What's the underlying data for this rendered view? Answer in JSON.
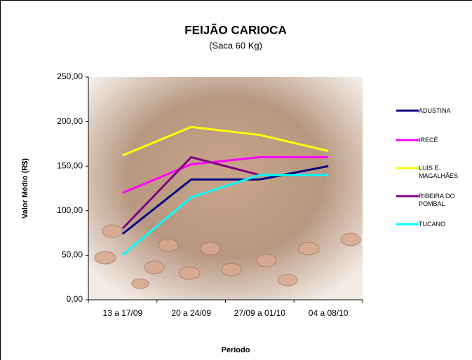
{
  "chart_data": {
    "type": "line",
    "title": "FEIJÃO CARIOCA",
    "subtitle": "(Saca 60 Kg)",
    "y_label": "Valor Médio (R$)",
    "x_label": "Período",
    "categories": [
      "13 a 17/09",
      "20 a 24/09",
      "27/09 a 01/10",
      "04 a 08/10"
    ],
    "series": [
      {
        "name": "ADUSTINA",
        "color": "#000080",
        "values": [
          74,
          135,
          135,
          150
        ]
      },
      {
        "name": "IRECÊ",
        "color": "#ff00ff",
        "values": [
          120,
          152,
          160,
          160
        ]
      },
      {
        "name": "LUÍS E. MAGALHÃES",
        "color": "#ffff00",
        "values": [
          162,
          194,
          185,
          167
        ]
      },
      {
        "name": "RIBEIRA DO POMBAL",
        "color": "#800080",
        "values": [
          80,
          160,
          140,
          140
        ]
      },
      {
        "name": "TUCANO",
        "color": "#00ffff",
        "values": [
          50,
          115,
          140,
          140
        ]
      }
    ],
    "ylim": [
      0,
      250
    ],
    "yticks": [
      {
        "value": 0,
        "label": "0,00"
      },
      {
        "value": 50,
        "label": "50,00"
      },
      {
        "value": 100,
        "label": "100,00"
      },
      {
        "value": 150,
        "label": "150,00"
      },
      {
        "value": 200,
        "label": "200,00"
      },
      {
        "value": 250,
        "label": "250,00"
      }
    ]
  }
}
